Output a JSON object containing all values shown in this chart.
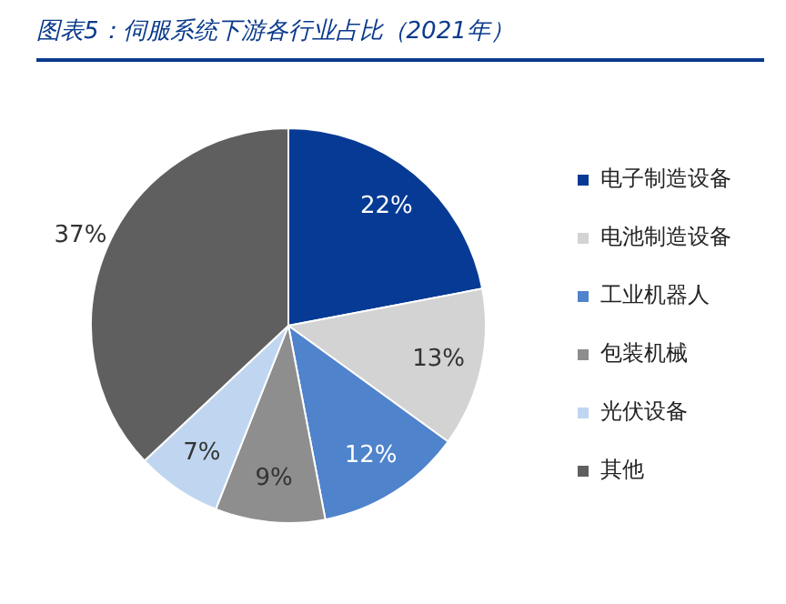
{
  "chart_data": {
    "type": "pie",
    "title": "图表5：伺服系统下游各行业占比（2021年）",
    "categories": [
      "电子制造设备",
      "电池制造设备",
      "工业机器人",
      "包装机械",
      "光伏设备",
      "其他"
    ],
    "values": [
      22,
      13,
      12,
      9,
      7,
      37
    ],
    "colors": [
      "#063a94",
      "#d3d3d3",
      "#4f83cc",
      "#8e8e8e",
      "#c0d6f0",
      "#5f5f5f"
    ],
    "value_labels": [
      "22%",
      "13%",
      "12%",
      "9%",
      "7%",
      "37%"
    ],
    "legend": "right"
  }
}
